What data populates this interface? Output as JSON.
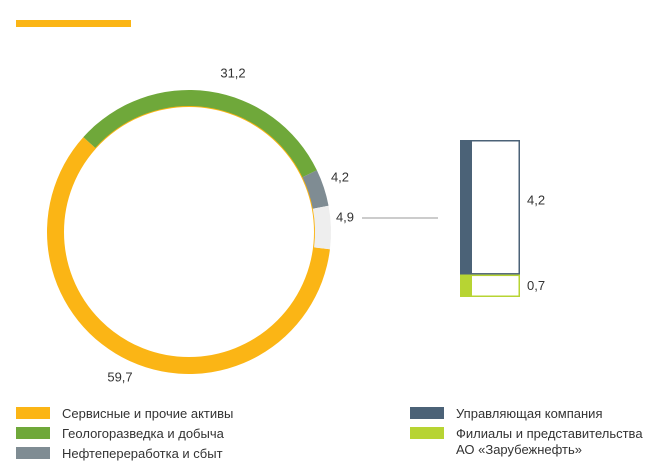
{
  "chart_data": [
    {
      "type": "donut",
      "categories": [
        "Сервисные и прочие активы",
        "Геологоразведка и добыча",
        "Нефтепереработка и сбыт",
        null
      ],
      "values": [
        59.7,
        31.2,
        4.2,
        4.9
      ],
      "value_labels": [
        "59,7",
        "31,2",
        "4,2",
        "4,9"
      ],
      "colors": [
        "#fbb515",
        "#6fa83a",
        "#7f8c93",
        "#eeeeee"
      ]
    },
    {
      "type": "stacked-bar",
      "series": [
        {
          "name": "Управляющая компания",
          "color": "#4b6277",
          "values": [
            4.2
          ],
          "value_labels": [
            "4,2"
          ]
        },
        {
          "name": "Филиалы и представительства АО «Зарубежнефть»",
          "color": "#b7d433",
          "values": [
            0.7
          ],
          "value_labels": [
            "0,7"
          ]
        }
      ]
    }
  ]
}
